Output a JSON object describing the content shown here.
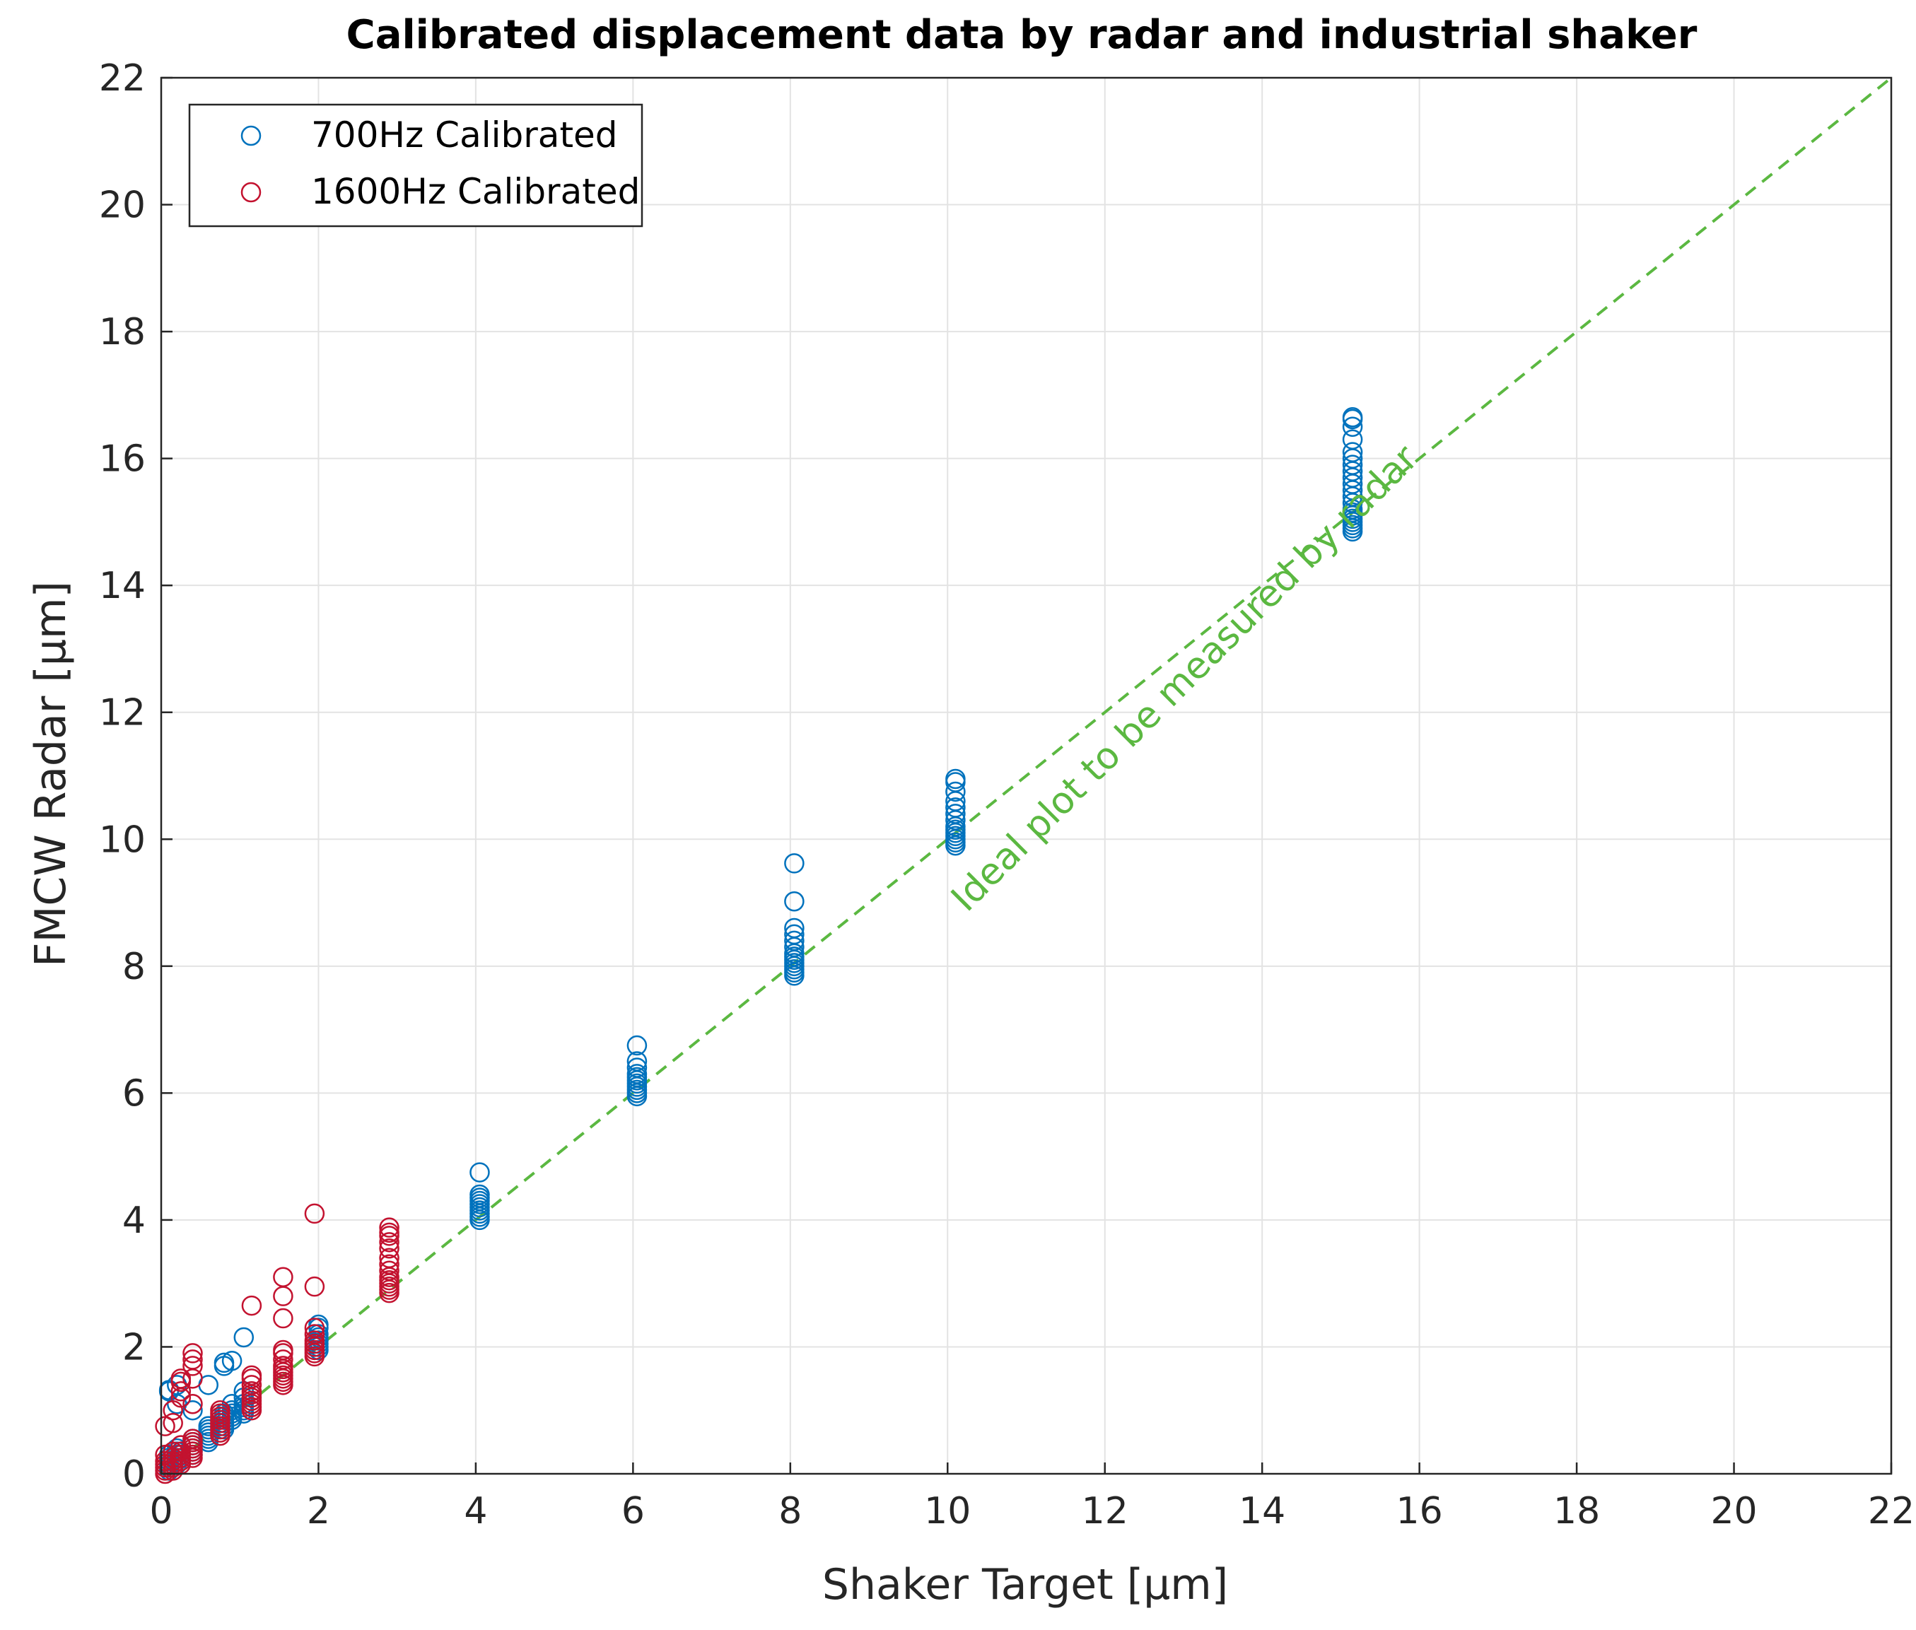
{
  "chart_data": {
    "type": "scatter",
    "title": "Calibrated displacement data by radar and industrial shaker",
    "xlabel": "Shaker Target [µm]",
    "ylabel": "FMCW Radar [µm]",
    "xlim": [
      0,
      22
    ],
    "ylim": [
      0,
      22
    ],
    "xticks": [
      0,
      2,
      4,
      6,
      8,
      10,
      12,
      14,
      16,
      18,
      20,
      22
    ],
    "yticks": [
      0,
      2,
      4,
      6,
      8,
      10,
      12,
      14,
      16,
      18,
      20,
      22
    ],
    "grid": true,
    "legend_position": "top-left",
    "series": [
      {
        "name": "700Hz Calibrated",
        "color": "#0072BD",
        "marker": "circle-open",
        "clusters": [
          {
            "x": 0.1,
            "y": [
              0.05,
              0.1,
              0.15,
              0.2,
              0.25,
              0.3,
              1.3,
              1.32
            ]
          },
          {
            "x": 0.2,
            "y": [
              0.15,
              0.2,
              0.25,
              0.3,
              0.35,
              0.4,
              1.1,
              1.4
            ]
          },
          {
            "x": 0.4,
            "y": [
              0.3,
              0.35,
              0.4,
              0.45,
              0.5,
              0.55,
              1.0
            ]
          },
          {
            "x": 0.6,
            "y": [
              0.5,
              0.55,
              0.6,
              0.65,
              0.7,
              0.75,
              1.4
            ]
          },
          {
            "x": 0.8,
            "y": [
              0.7,
              0.75,
              0.8,
              0.85,
              0.9,
              0.95,
              1.7,
              1.75
            ]
          },
          {
            "x": 0.9,
            "y": [
              0.85,
              0.9,
              0.95,
              1.0,
              1.1,
              1.78
            ]
          },
          {
            "x": 1.05,
            "y": [
              0.95,
              1.0,
              1.05,
              1.1,
              1.2,
              1.3,
              2.15
            ]
          },
          {
            "x": 2.0,
            "y": [
              1.95,
              2.0,
              2.05,
              2.1,
              2.15,
              2.2,
              2.3,
              2.35
            ]
          },
          {
            "x": 4.05,
            "y": [
              4.0,
              4.05,
              4.1,
              4.15,
              4.2,
              4.25,
              4.3,
              4.35,
              4.4,
              4.75
            ]
          },
          {
            "x": 6.05,
            "y": [
              5.95,
              6.0,
              6.05,
              6.1,
              6.15,
              6.2,
              6.25,
              6.3,
              6.4,
              6.5,
              6.75
            ]
          },
          {
            "x": 8.05,
            "y": [
              7.85,
              7.9,
              7.95,
              8.0,
              8.05,
              8.1,
              8.15,
              8.2,
              8.3,
              8.4,
              8.5,
              8.6,
              9.02,
              9.62
            ]
          },
          {
            "x": 10.1,
            "y": [
              9.9,
              9.95,
              10.0,
              10.05,
              10.1,
              10.15,
              10.2,
              10.3,
              10.4,
              10.5,
              10.6,
              10.75,
              10.9,
              10.95
            ]
          },
          {
            "x": 15.15,
            "y": [
              14.85,
              14.9,
              14.95,
              15.0,
              15.05,
              15.1,
              15.15,
              15.2,
              15.3,
              15.4,
              15.5,
              15.6,
              15.7,
              15.8,
              15.9,
              16.0,
              16.1,
              16.3,
              16.5,
              16.62,
              16.65
            ]
          }
        ]
      },
      {
        "name": "1600Hz Calibrated",
        "color": "#C3122F",
        "marker": "circle-open",
        "clusters": [
          {
            "x": 0.05,
            "y": [
              0.0,
              0.05,
              0.1,
              0.15,
              0.2,
              0.3,
              0.75
            ]
          },
          {
            "x": 0.15,
            "y": [
              0.05,
              0.1,
              0.15,
              0.2,
              0.25,
              0.35,
              0.8,
              1.0
            ]
          },
          {
            "x": 0.25,
            "y": [
              0.15,
              0.2,
              0.25,
              0.3,
              0.35,
              0.45,
              1.2,
              1.3,
              1.45,
              1.5
            ]
          },
          {
            "x": 0.4,
            "y": [
              0.25,
              0.3,
              0.35,
              0.4,
              0.45,
              0.5,
              0.55,
              1.1,
              1.5,
              1.7,
              1.8,
              1.9
            ]
          },
          {
            "x": 0.75,
            "y": [
              0.6,
              0.65,
              0.7,
              0.75,
              0.8,
              0.85,
              0.9,
              0.95,
              1.0
            ]
          },
          {
            "x": 1.15,
            "y": [
              1.0,
              1.05,
              1.1,
              1.15,
              1.2,
              1.25,
              1.3,
              1.4,
              1.5,
              1.55,
              2.65
            ]
          },
          {
            "x": 1.55,
            "y": [
              1.4,
              1.45,
              1.5,
              1.55,
              1.6,
              1.65,
              1.7,
              1.8,
              1.9,
              1.95,
              2.45,
              2.8,
              3.1
            ]
          },
          {
            "x": 1.95,
            "y": [
              1.85,
              1.9,
              1.95,
              2.0,
              2.05,
              2.1,
              2.2,
              2.3,
              2.95,
              4.1
            ]
          },
          {
            "x": 2.9,
            "y": [
              2.85,
              2.9,
              2.95,
              3.0,
              3.05,
              3.1,
              3.2,
              3.3,
              3.4,
              3.55,
              3.65,
              3.75,
              3.8,
              3.88
            ]
          }
        ]
      },
      {
        "name": "Ideal",
        "color": "#5BB841",
        "style": "dashed",
        "x": [
          0,
          22
        ],
        "y": [
          0,
          22
        ]
      }
    ],
    "annotations": [
      {
        "text": "Ideal plot to be measured by radar",
        "color": "#5BB841",
        "rotation": -45
      }
    ]
  }
}
